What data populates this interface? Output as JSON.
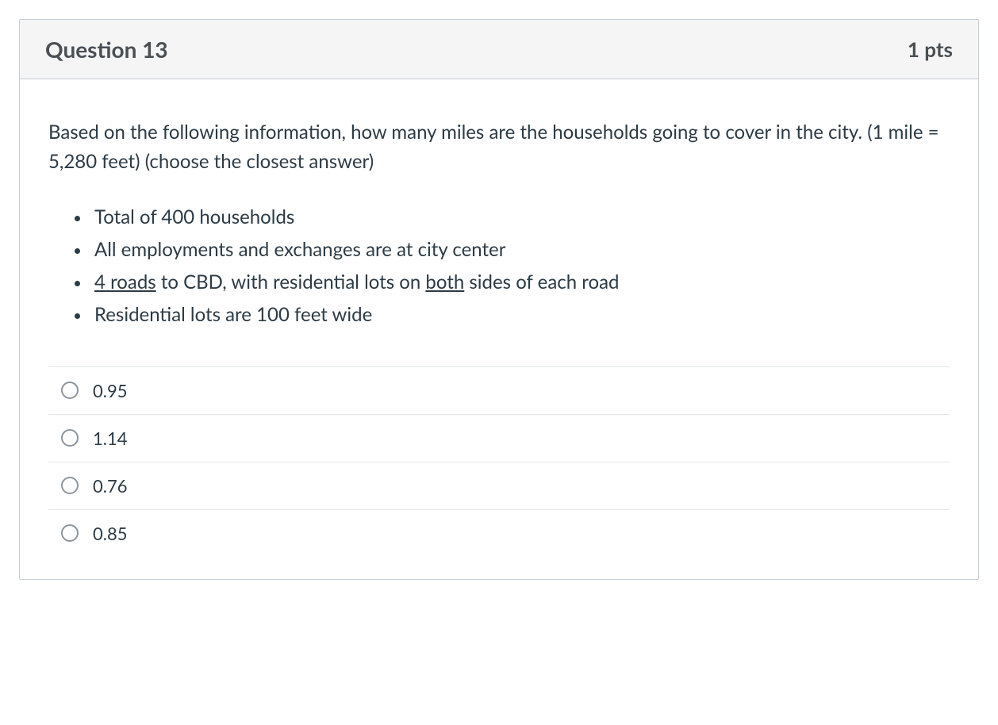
{
  "colors": {
    "card_border": "#c7cdd1",
    "header_bg": "#f5f5f5",
    "body_text": "#2d3b45",
    "muted_text": "#4a4f54",
    "divider": "#e3e6e8",
    "radio_border": "#8d959d",
    "page_bg": "#ffffff"
  },
  "typography": {
    "title_fontsize": 28,
    "points_fontsize": 26,
    "prompt_fontsize": 24,
    "bullet_fontsize": 24,
    "answer_fontsize": 22,
    "title_weight": 700
  },
  "question": {
    "title": "Question 13",
    "points": "1 pts",
    "prompt": "Based on the following information, how many miles are the households going to cover in the city. (1 mile = 5,280 feet)  (choose the closest answer)",
    "bullets": [
      {
        "text": "Total of 400 households"
      },
      {
        "text_html": "<span class=\"u\">4 roads</span> to CBD, with residential lots on <span class=\"u\">both</span> sides of each road",
        "plain": "4 roads to CBD, with residential lots on both sides of each road"
      },
      {
        "text": "All employments and exchanges are at city center"
      },
      {
        "text": "Residential lots are 100 feet wide"
      }
    ],
    "bullet_order": [
      0,
      2,
      1,
      3
    ],
    "answers": [
      {
        "label": "0.95",
        "selected": false
      },
      {
        "label": "1.14",
        "selected": false
      },
      {
        "label": "0.76",
        "selected": false
      },
      {
        "label": "0.85",
        "selected": false
      }
    ]
  }
}
